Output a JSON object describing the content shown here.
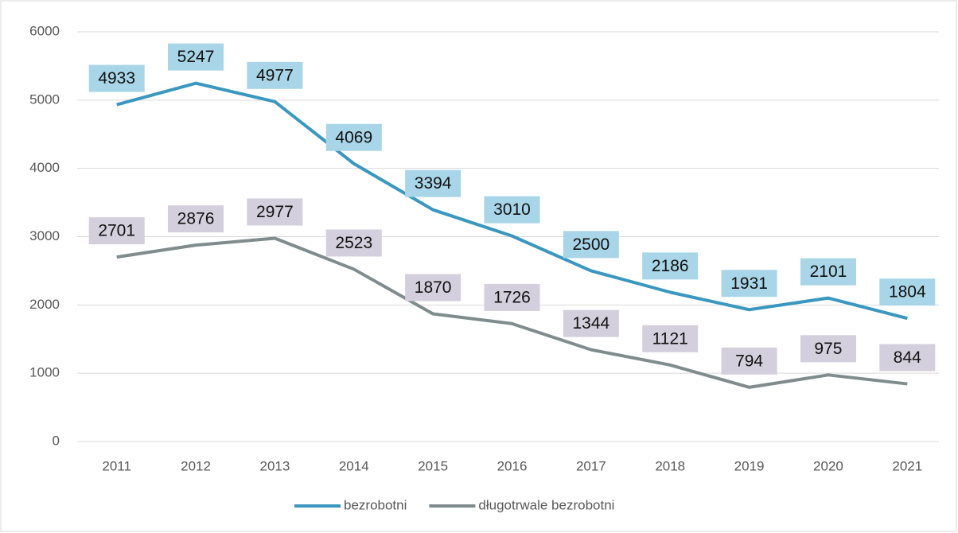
{
  "chart_data": {
    "type": "line",
    "categories": [
      "2011",
      "2012",
      "2013",
      "2014",
      "2015",
      "2016",
      "2017",
      "2018",
      "2019",
      "2020",
      "2021"
    ],
    "series": [
      {
        "name": "bezrobotni",
        "color": "#3a97bf",
        "label_color": "#a9d5e8",
        "values": [
          4933,
          5247,
          4977,
          4069,
          3394,
          3010,
          2500,
          2186,
          1931,
          2101,
          1804
        ]
      },
      {
        "name": "długotrwale bezrobotni",
        "color": "#7f8c8d",
        "label_color": "#d3cfdc",
        "values": [
          2701,
          2876,
          2977,
          2523,
          1870,
          1726,
          1344,
          1121,
          794,
          975,
          844
        ]
      }
    ],
    "ylim": [
      0,
      6000
    ],
    "yticks": [
      0,
      1000,
      2000,
      3000,
      4000,
      5000,
      6000
    ],
    "grid": true,
    "legend": "bottom"
  }
}
